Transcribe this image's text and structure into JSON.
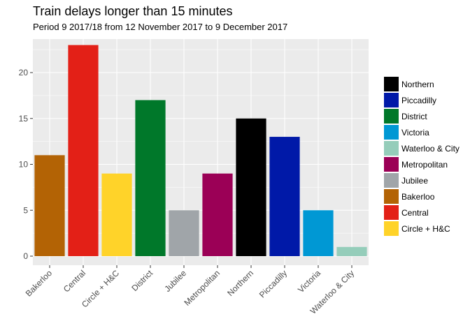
{
  "chart_data": {
    "type": "bar",
    "title": "Train delays longer than 15 minutes",
    "subtitle": "Period 9 2017/18 from 12 November 2017 to 9 December 2017",
    "xlabel": "",
    "ylabel": "",
    "categories": [
      "Bakerloo",
      "Central",
      "Circle + H&C",
      "District",
      "Jubilee",
      "Metropolitan",
      "Northern",
      "Piccadilly",
      "Victoria",
      "Waterloo & City"
    ],
    "values": [
      11,
      23,
      9,
      17,
      5,
      9,
      15,
      13,
      5,
      1
    ],
    "colors": [
      "#B36305",
      "#E32017",
      "#FFD329",
      "#00782A",
      "#A0A5A9",
      "#9B0056",
      "#000000",
      "#0019A8",
      "#0098D4",
      "#95CDBA"
    ],
    "ylim": [
      0,
      24
    ],
    "yticks": [
      0,
      5,
      10,
      15,
      20
    ],
    "grid": true,
    "legend_position": "right",
    "legend": [
      {
        "label": "Northern",
        "color": "#000000"
      },
      {
        "label": "Piccadilly",
        "color": "#0019A8"
      },
      {
        "label": "District",
        "color": "#00782A"
      },
      {
        "label": "Victoria",
        "color": "#0098D4"
      },
      {
        "label": "Waterloo & City",
        "color": "#95CDBA"
      },
      {
        "label": "Metropolitan",
        "color": "#9B0056"
      },
      {
        "label": "Jubilee",
        "color": "#A0A5A9"
      },
      {
        "label": "Bakerloo",
        "color": "#B36305"
      },
      {
        "label": "Central",
        "color": "#E32017"
      },
      {
        "label": "Circle + H&C",
        "color": "#FFD329"
      }
    ],
    "panel_background": "#EBEBEB",
    "grid_color": "#FFFFFF"
  }
}
